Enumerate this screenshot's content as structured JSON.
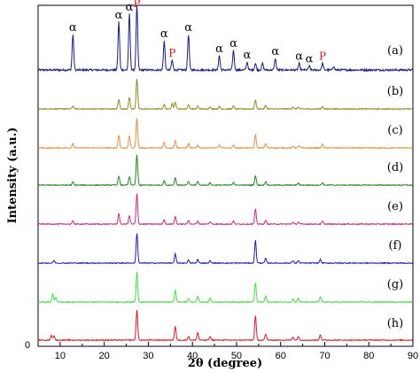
{
  "chart_data": {
    "type": "line",
    "xlabel": "2θ (degree)",
    "ylabel": "Intensity (a.u.)",
    "xlim": [
      5,
      90
    ],
    "xticks": [
      10,
      20,
      30,
      40,
      50,
      60,
      70,
      80,
      90
    ],
    "y_zero_label": "0",
    "grid": false,
    "peak_annotation_labels": [
      "α",
      "P"
    ],
    "series": [
      {
        "name": "(a)",
        "color": "#1a1a8c",
        "peaks": [
          [
            12.9,
            0.55
          ],
          [
            23.3,
            0.74
          ],
          [
            25.7,
            0.86
          ],
          [
            27.4,
            1.0
          ],
          [
            33.6,
            0.45
          ],
          [
            35.4,
            0.15
          ],
          [
            39.1,
            0.55
          ],
          [
            46.1,
            0.22
          ],
          [
            49.3,
            0.3
          ],
          [
            52.4,
            0.12
          ],
          [
            54.3,
            0.1
          ],
          [
            55.9,
            0.1
          ],
          [
            58.8,
            0.18
          ],
          [
            64.2,
            0.1
          ],
          [
            66.5,
            0.06
          ],
          [
            69.5,
            0.1
          ],
          [
            72.0,
            0.06
          ]
        ]
      },
      {
        "name": "(b)",
        "color": "#8c8c1a",
        "peaks": [
          [
            12.9,
            0.1
          ],
          [
            23.3,
            0.32
          ],
          [
            25.7,
            0.38
          ],
          [
            27.4,
            1.0
          ],
          [
            33.6,
            0.15
          ],
          [
            35.4,
            0.18
          ],
          [
            36.1,
            0.22
          ],
          [
            39.1,
            0.14
          ],
          [
            41.2,
            0.1
          ],
          [
            44.0,
            0.08
          ],
          [
            46.1,
            0.08
          ],
          [
            49.3,
            0.1
          ],
          [
            54.3,
            0.3
          ],
          [
            56.6,
            0.12
          ],
          [
            62.8,
            0.06
          ],
          [
            64.0,
            0.06
          ],
          [
            69.5,
            0.08
          ]
        ]
      },
      {
        "name": "(c)",
        "color": "#f28c3c",
        "peaks": [
          [
            12.9,
            0.15
          ],
          [
            23.3,
            0.42
          ],
          [
            25.7,
            0.4
          ],
          [
            27.4,
            1.0
          ],
          [
            33.6,
            0.2
          ],
          [
            36.1,
            0.25
          ],
          [
            39.1,
            0.15
          ],
          [
            41.2,
            0.1
          ],
          [
            46.1,
            0.1
          ],
          [
            49.3,
            0.1
          ],
          [
            54.3,
            0.45
          ],
          [
            56.6,
            0.15
          ],
          [
            62.8,
            0.06
          ],
          [
            64.2,
            0.08
          ],
          [
            69.5,
            0.12
          ]
        ]
      },
      {
        "name": "(d)",
        "color": "#1f8c1f",
        "peaks": [
          [
            12.9,
            0.1
          ],
          [
            23.3,
            0.3
          ],
          [
            25.7,
            0.28
          ],
          [
            27.4,
            1.0
          ],
          [
            33.6,
            0.15
          ],
          [
            36.1,
            0.25
          ],
          [
            39.1,
            0.12
          ],
          [
            41.2,
            0.12
          ],
          [
            44.0,
            0.08
          ],
          [
            49.3,
            0.1
          ],
          [
            54.3,
            0.32
          ],
          [
            56.6,
            0.12
          ],
          [
            64.0,
            0.06
          ],
          [
            69.5,
            0.08
          ]
        ]
      },
      {
        "name": "(e)",
        "color": "#d6267d",
        "peaks": [
          [
            12.9,
            0.1
          ],
          [
            23.3,
            0.35
          ],
          [
            25.7,
            0.28
          ],
          [
            27.4,
            1.0
          ],
          [
            33.6,
            0.15
          ],
          [
            36.1,
            0.25
          ],
          [
            39.1,
            0.12
          ],
          [
            41.2,
            0.1
          ],
          [
            44.0,
            0.08
          ],
          [
            49.3,
            0.1
          ],
          [
            54.3,
            0.5
          ],
          [
            56.6,
            0.12
          ],
          [
            62.8,
            0.06
          ],
          [
            64.0,
            0.07
          ],
          [
            69.5,
            0.1
          ]
        ]
      },
      {
        "name": "(f)",
        "color": "#1a1ad6",
        "peaks": [
          [
            8.6,
            0.08
          ],
          [
            27.4,
            1.0
          ],
          [
            36.1,
            0.3
          ],
          [
            39.1,
            0.1
          ],
          [
            41.2,
            0.12
          ],
          [
            44.0,
            0.08
          ],
          [
            54.3,
            0.75
          ],
          [
            56.6,
            0.15
          ],
          [
            62.8,
            0.08
          ],
          [
            64.0,
            0.08
          ],
          [
            69.0,
            0.12
          ]
        ]
      },
      {
        "name": "(g)",
        "color": "#3ce63c",
        "peaks": [
          [
            8.3,
            0.25
          ],
          [
            9.0,
            0.15
          ],
          [
            27.4,
            1.0
          ],
          [
            36.1,
            0.4
          ],
          [
            39.1,
            0.12
          ],
          [
            41.2,
            0.2
          ],
          [
            44.0,
            0.12
          ],
          [
            54.3,
            0.65
          ],
          [
            56.6,
            0.2
          ],
          [
            62.8,
            0.1
          ],
          [
            64.0,
            0.12
          ],
          [
            69.0,
            0.18
          ]
        ]
      },
      {
        "name": "(h)",
        "color": "#e61a1a",
        "peaks": [
          [
            8.0,
            0.15
          ],
          [
            8.6,
            0.15
          ],
          [
            27.4,
            1.0
          ],
          [
            36.1,
            0.45
          ],
          [
            39.1,
            0.12
          ],
          [
            41.2,
            0.25
          ],
          [
            44.0,
            0.12
          ],
          [
            54.3,
            0.8
          ],
          [
            56.6,
            0.2
          ],
          [
            62.8,
            0.1
          ],
          [
            64.0,
            0.12
          ],
          [
            69.0,
            0.18
          ]
        ]
      }
    ],
    "annotations": [
      {
        "text": "α",
        "x": 12.9,
        "series": "(a)"
      },
      {
        "text": "α",
        "x": 23.3,
        "series": "(a)"
      },
      {
        "text": "α",
        "x": 25.7,
        "series": "(a)"
      },
      {
        "text": "P",
        "x": 27.4,
        "series": "(a)"
      },
      {
        "text": "α",
        "x": 33.6,
        "series": "(a)"
      },
      {
        "text": "P",
        "x": 35.4,
        "series": "(a)"
      },
      {
        "text": "α",
        "x": 39.1,
        "series": "(a)"
      },
      {
        "text": "α",
        "x": 46.1,
        "series": "(a)"
      },
      {
        "text": "α",
        "x": 49.3,
        "series": "(a)"
      },
      {
        "text": "α",
        "x": 52.4,
        "series": "(a)"
      },
      {
        "text": "α",
        "x": 58.8,
        "series": "(a)"
      },
      {
        "text": "α",
        "x": 64.2,
        "series": "(a)"
      },
      {
        "text": "α",
        "x": 66.5,
        "series": "(a)"
      },
      {
        "text": "P",
        "x": 69.5,
        "series": "(a)"
      }
    ]
  }
}
